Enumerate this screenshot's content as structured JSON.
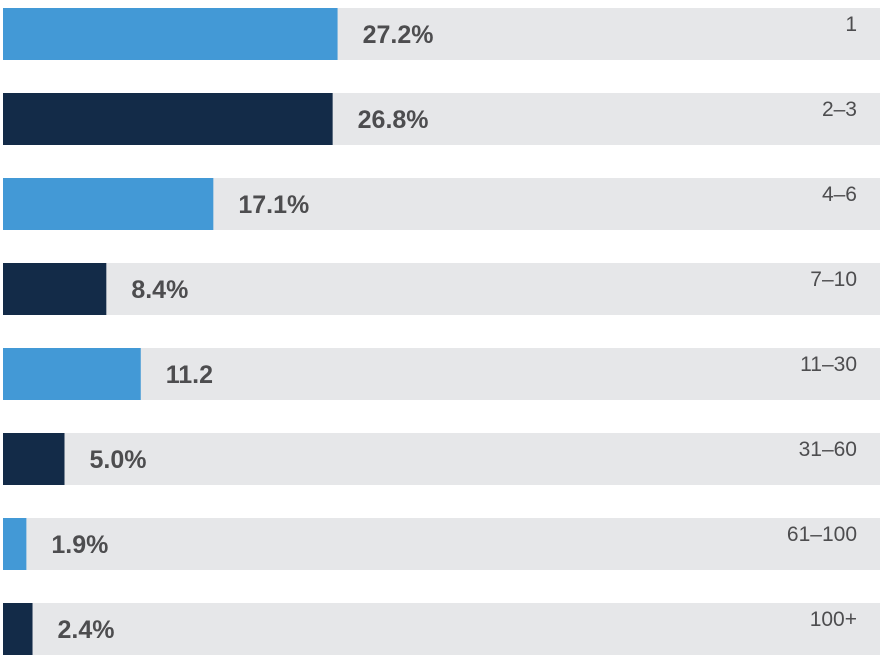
{
  "chart_data": {
    "type": "bar",
    "orientation": "horizontal",
    "categories": [
      "1",
      "2–3",
      "4–6",
      "7–10",
      "11–30",
      "31–60",
      "61–100",
      "100+"
    ],
    "values": [
      27.2,
      26.8,
      17.1,
      8.4,
      11.2,
      5.0,
      1.9,
      2.4
    ],
    "value_labels": [
      "27.2%",
      "26.8%",
      "17.1%",
      "8.4%",
      "11.2",
      "5.0%",
      "1.9%",
      "2.4%"
    ],
    "xlim": [
      0,
      71.3
    ],
    "title": "",
    "xlabel": "",
    "ylabel": "",
    "grid": false,
    "legend": "none",
    "colors": {
      "bar_light": "#4399d6",
      "bar_dark": "#132b48",
      "track": "#e6e7e9",
      "text": "#4d4d4f"
    }
  }
}
